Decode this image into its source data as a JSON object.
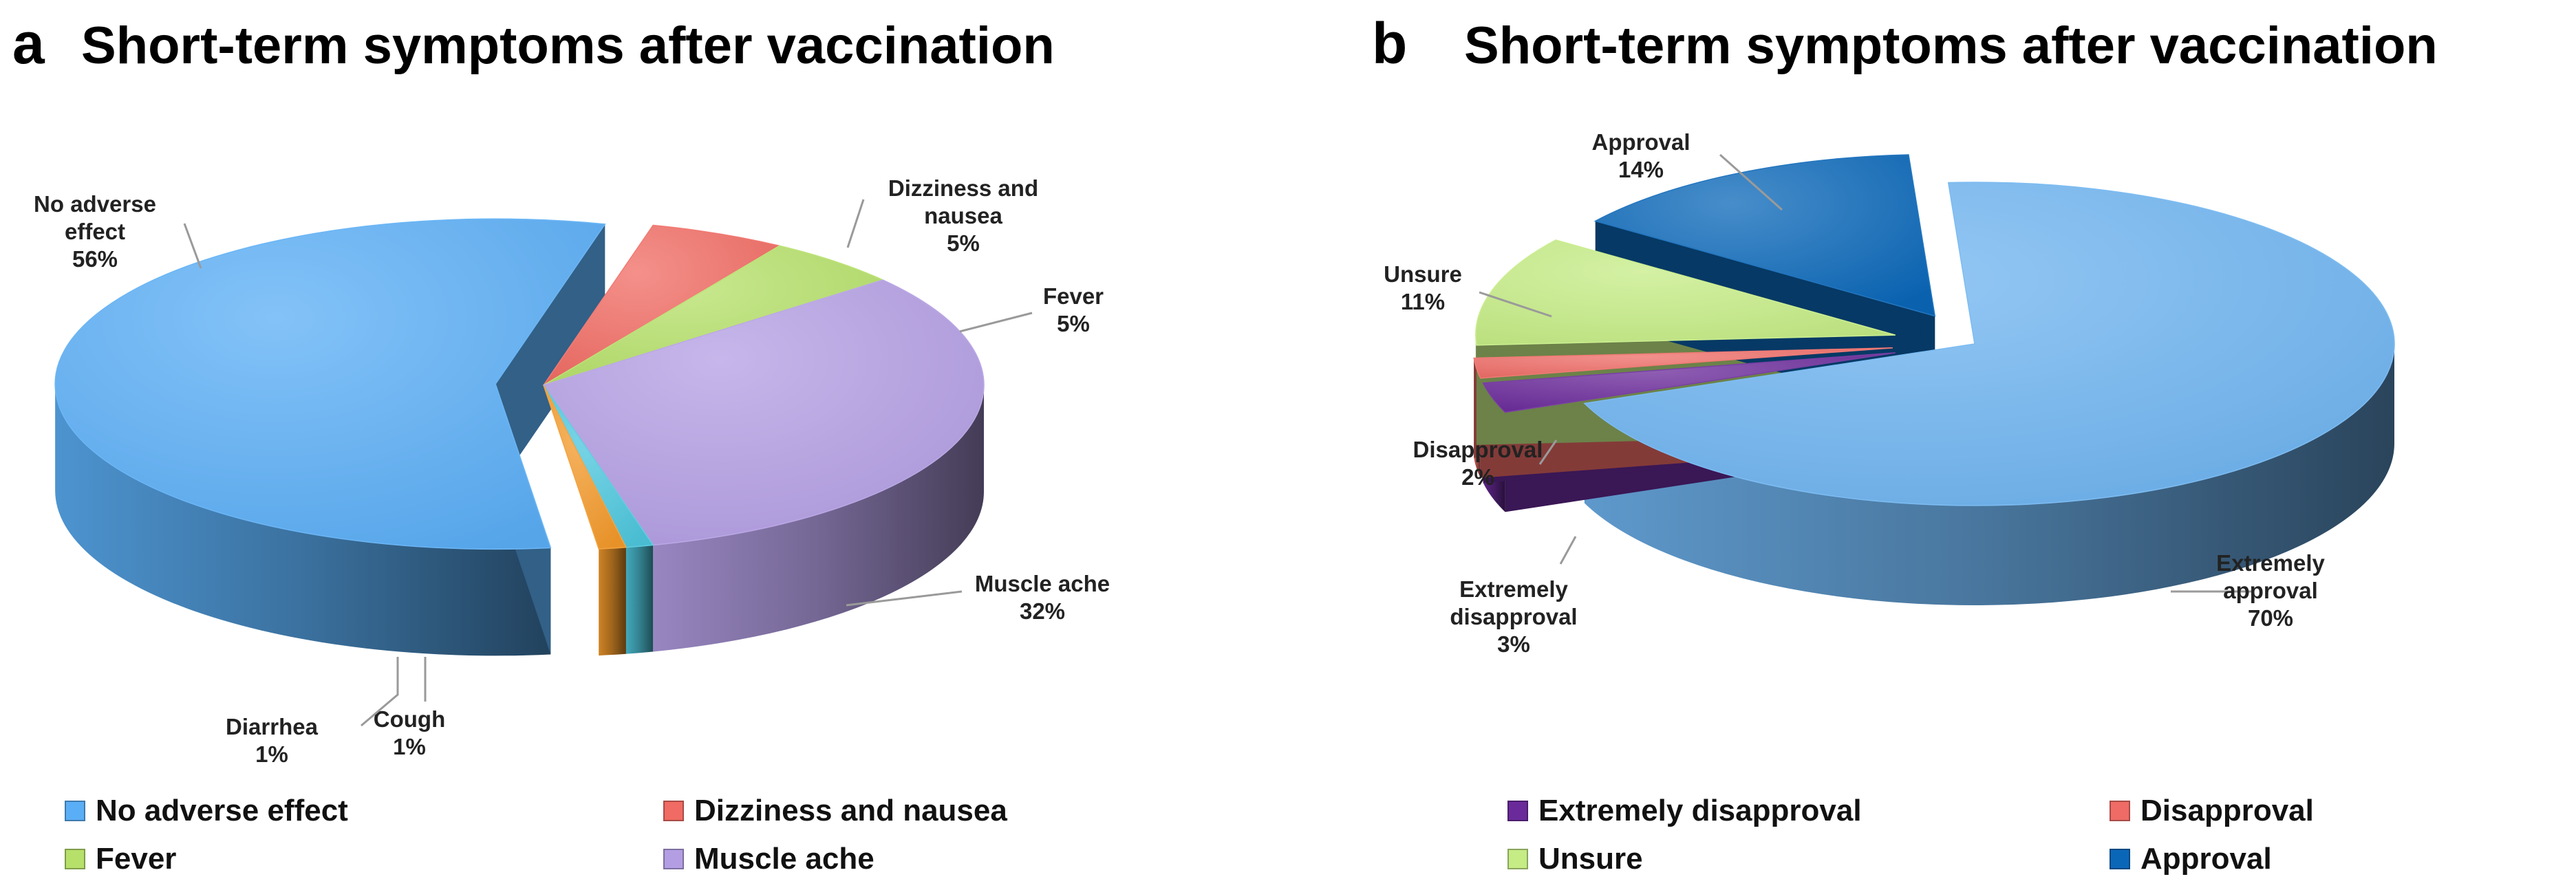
{
  "chart_data": [
    {
      "type": "pie",
      "panel": "a",
      "title": "Short-term symptoms after vaccination",
      "unit": "%",
      "slices": [
        {
          "label": "Dizziness and nausea",
          "label_lines": [
            "Dizziness and",
            "nausea"
          ],
          "value": 5,
          "pct_label": "5%",
          "color": "#f06b63",
          "legend": true
        },
        {
          "label": "Fever",
          "label_lines": [
            "Fever"
          ],
          "value": 5,
          "pct_label": "5%",
          "color": "#b6e06a",
          "legend": true
        },
        {
          "label": "Muscle ache",
          "label_lines": [
            "Muscle ache"
          ],
          "value": 32,
          "pct_label": "32%",
          "color": "#b39ee3",
          "legend": true
        },
        {
          "label": "Cough",
          "label_lines": [
            "Cough"
          ],
          "value": 1,
          "pct_label": "1%",
          "color": "#4ec7dd",
          "legend": false
        },
        {
          "label": "Diarrhea",
          "label_lines": [
            "Diarrhea"
          ],
          "value": 1,
          "pct_label": "1%",
          "color": "#f39a2b",
          "legend": false
        },
        {
          "label": "No adverse effect",
          "label_lines": [
            "No adverse",
            "effect"
          ],
          "value": 56,
          "pct_label": "56%",
          "color": "#5aaef5",
          "legend": true
        }
      ],
      "legend_order": [
        "No adverse effect",
        "Dizziness and nausea",
        "Fever",
        "Muscle ache"
      ]
    },
    {
      "type": "pie",
      "panel": "b",
      "title": "Short-term symptoms after vaccination",
      "unit": "%",
      "slices": [
        {
          "label": "Extremely approval",
          "label_lines": [
            "Extremely",
            "approval"
          ],
          "value": 70,
          "pct_label": "70%",
          "color": "#6fb4f0",
          "legend": false
        },
        {
          "label": "Extremely disapproval",
          "label_lines": [
            "Extremely",
            "disapproval"
          ],
          "value": 3,
          "pct_label": "3%",
          "color": "#6a2a9a",
          "legend": true
        },
        {
          "label": "Disapproval",
          "label_lines": [
            "Disapproval"
          ],
          "value": 2,
          "pct_label": "2%",
          "color": "#ee6b66",
          "legend": true
        },
        {
          "label": "Unsure",
          "label_lines": [
            "Unsure"
          ],
          "value": 11,
          "pct_label": "11%",
          "color": "#c5ec85",
          "legend": true
        },
        {
          "label": "Approval",
          "label_lines": [
            "Approval"
          ],
          "value": 14,
          "pct_label": "14%",
          "color": "#0a67b8",
          "legend": true
        }
      ],
      "legend_order": [
        "Extremely disapproval",
        "Disapproval",
        "Unsure",
        "Approval"
      ]
    }
  ]
}
